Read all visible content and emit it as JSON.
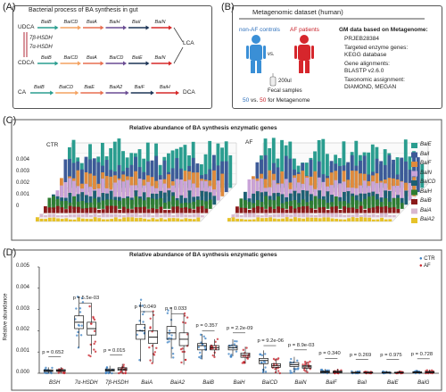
{
  "panels": {
    "a": "(A)",
    "b": "(B)",
    "c": "(C)",
    "d": "(D)"
  },
  "panel_a": {
    "title": "Bacterial  process of BA synthesis in gut",
    "compounds": {
      "udca": "UDCA",
      "cdca": "CDCA",
      "lca": "LCA",
      "ca": "CA",
      "dca": "DCA"
    },
    "enzymes": {
      "h7b": "7β-HSDH",
      "h7a": "7α-HSDH"
    },
    "row1": [
      "BaiB",
      "BaiCD",
      "BaiA",
      "BaiH",
      "BaiI",
      "BaiN"
    ],
    "row2": [
      "BaiB",
      "BaiCD",
      "BaiA",
      "BaiCD",
      "BaiE",
      "BaiN"
    ],
    "row3": [
      "BaiB",
      "BaiCD",
      "BaiE",
      "BaiA2",
      "BaiF",
      "BaiH"
    ],
    "arrow_colors": [
      "#2a9d8f",
      "#f4a261",
      "#e76f51",
      "#6a4c93",
      "#1d3557",
      "#d62828"
    ]
  },
  "panel_b": {
    "title": "Metagenomic dataset (human)",
    "control_label": "non-AF controls",
    "af_label": "AF patients",
    "vs": "vs.",
    "volume": "200ul",
    "fecal": "Fecal samples",
    "count_ctrl": "50",
    "count_vs": "vs.",
    "count_af": "50",
    "count_suffix": "for Metagenome",
    "gm_title": "GM data based on Metagenome:",
    "gm_lines": [
      "PRJEB28384",
      "Targeted enzyme genes:",
      "KEGG database",
      "Gene alignments:",
      "BLASTP v2.6.0",
      "Taxonomic assignment:",
      "DIAMOND, MEGAN"
    ]
  },
  "panel_c": {
    "title": "Relative abundance of BA synthesis enzymatic genes",
    "left_label": "CTR",
    "right_label": "AF",
    "yticks": [
      "0.004",
      "0.003",
      "0.002",
      "0.001",
      "0"
    ],
    "legend": [
      {
        "name": "BaiE",
        "color": "#2a9d8f"
      },
      {
        "name": "BaiI",
        "color": "#3d5a98"
      },
      {
        "name": "BaiF",
        "color": "#e08a3c"
      },
      {
        "name": "BaiN",
        "color": "#c9a3d8"
      },
      {
        "name": "BaiCD",
        "color": "#1d5f73"
      },
      {
        "name": "BaiH",
        "color": "#2e7d32"
      },
      {
        "name": "BaiB",
        "color": "#8b1a1a"
      },
      {
        "name": "BaiA",
        "color": "#d8b8cf"
      },
      {
        "name": "BaiA2",
        "color": "#e6c229"
      }
    ]
  },
  "panel_d": {
    "title": "Relative abundance of BA synthesis enzymatic genes",
    "ylabel": "Relative abundance",
    "legend_ctr": "CTR",
    "legend_af": "AF",
    "ctr_color": "#3a7fc1",
    "af_color": "#c8222a"
  },
  "chart_data": {
    "type": "box",
    "title": "Relative abundance of BA synthesis enzymatic genes",
    "xlabel": "",
    "ylabel": "Relative abundance",
    "ylim": [
      0,
      0.005
    ],
    "yticks": [
      "0.005",
      "0.004",
      "0.003",
      "0.002",
      "0.001",
      "0.000"
    ],
    "series": [
      {
        "name": "CTR"
      },
      {
        "name": "AF"
      }
    ],
    "categories": [
      {
        "gene": "BSH",
        "p": "p = 0.652",
        "ctr_median": 0.00012,
        "af_median": 0.00013,
        "ctr_q1": 8e-05,
        "ctr_q3": 0.00016,
        "af_q1": 9e-05,
        "af_q3": 0.00017
      },
      {
        "gene": "7α-HSDH",
        "p": "p = 5.5e-03",
        "ctr_median": 0.0024,
        "af_median": 0.0021,
        "ctr_q1": 0.0021,
        "ctr_q3": 0.0027,
        "af_q1": 0.0018,
        "af_q3": 0.0024
      },
      {
        "gene": "7β-HSDH",
        "p": "p = 0.015",
        "ctr_median": 0.00015,
        "af_median": 0.0002,
        "ctr_q1": 0.0001,
        "ctr_q3": 0.0002,
        "af_q1": 0.00014,
        "af_q3": 0.00026
      },
      {
        "gene": "BaiA",
        "p": "p = 0.049",
        "ctr_median": 0.002,
        "af_median": 0.0017,
        "ctr_q1": 0.0016,
        "ctr_q3": 0.0023,
        "af_q1": 0.0014,
        "af_q3": 0.002
      },
      {
        "gene": "BaiA2",
        "p": "p = 0.033",
        "ctr_median": 0.0019,
        "af_median": 0.0016,
        "ctr_q1": 0.0016,
        "ctr_q3": 0.0022,
        "af_q1": 0.0013,
        "af_q3": 0.0019
      },
      {
        "gene": "BaiB",
        "p": "p = 0.357",
        "ctr_median": 0.0013,
        "af_median": 0.0012,
        "ctr_q1": 0.0011,
        "ctr_q3": 0.0014,
        "af_q1": 0.0011,
        "af_q3": 0.0013
      },
      {
        "gene": "BaiH",
        "p": "p = 2.2e-09",
        "ctr_median": 0.0012,
        "af_median": 0.00085,
        "ctr_q1": 0.0011,
        "ctr_q3": 0.0013,
        "af_q1": 0.00075,
        "af_q3": 0.00095
      },
      {
        "gene": "BaiCD",
        "p": "p = 9.2e-06",
        "ctr_median": 0.0006,
        "af_median": 0.00035,
        "ctr_q1": 0.00045,
        "ctr_q3": 0.0007,
        "af_q1": 0.00028,
        "af_q3": 0.00045
      },
      {
        "gene": "BaiN",
        "p": "p = 8.9e-03",
        "ctr_median": 0.0004,
        "af_median": 0.0003,
        "ctr_q1": 0.00032,
        "ctr_q3": 0.0005,
        "af_q1": 0.00024,
        "af_q3": 0.00036
      },
      {
        "gene": "BaiF",
        "p": "p = 0.340",
        "ctr_median": 6e-05,
        "af_median": 6e-05,
        "ctr_q1": 3e-05,
        "ctr_q3": 0.0001,
        "af_q1": 3e-05,
        "af_q3": 0.0001
      },
      {
        "gene": "BaiI",
        "p": "p = 0.269",
        "ctr_median": 3e-05,
        "af_median": 3e-05,
        "ctr_q1": 1e-05,
        "ctr_q3": 5e-05,
        "af_q1": 1e-05,
        "af_q3": 5e-05
      },
      {
        "gene": "BaiE",
        "p": "p = 0.975",
        "ctr_median": 3e-05,
        "af_median": 3e-05,
        "ctr_q1": 1e-05,
        "ctr_q3": 5e-05,
        "af_q1": 1e-05,
        "af_q3": 5e-05
      },
      {
        "gene": "BaiG",
        "p": "p = 0.728",
        "ctr_median": 4e-05,
        "af_median": 5e-05,
        "ctr_q1": 2e-05,
        "ctr_q3": 7e-05,
        "af_q1": 2e-05,
        "af_q3": 8e-05
      }
    ]
  }
}
